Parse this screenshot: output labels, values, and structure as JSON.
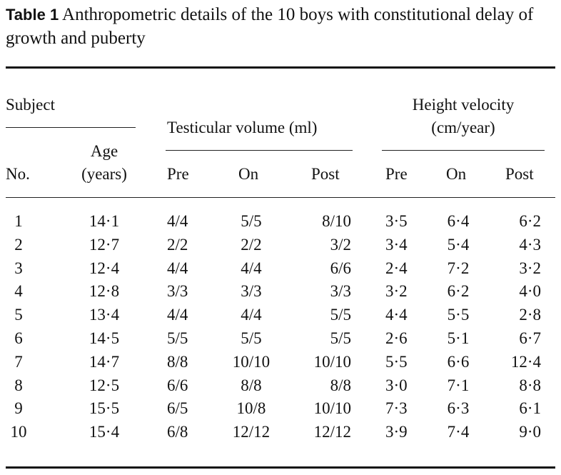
{
  "caption": {
    "label": "Table 1",
    "text": " Anthropometric details of the 10 boys with constitutional delay of growth and puberty"
  },
  "headers": {
    "subject": "Subject",
    "testicular_volume": "Testicular volume (ml)",
    "height_velocity_line1": "Height velocity",
    "height_velocity_line2": "(cm/year)",
    "age_line1": "Age",
    "age_line2": "(years)",
    "no": "No.",
    "tv_pre": "Pre",
    "tv_on": "On",
    "tv_post": "Post",
    "hv_pre": "Pre",
    "hv_on": "On",
    "hv_post": "Post"
  },
  "rows": [
    {
      "no": "1",
      "age": "14·1",
      "tv_pre": "4/4",
      "tv_on": "5/5",
      "tv_post": "8/10",
      "hv_pre": "3·5",
      "hv_on": "6·4",
      "hv_post": "6·2"
    },
    {
      "no": "2",
      "age": "12·7",
      "tv_pre": "2/2",
      "tv_on": "2/2",
      "tv_post": "3/2",
      "hv_pre": "3·4",
      "hv_on": "5·4",
      "hv_post": "4·3"
    },
    {
      "no": "3",
      "age": "12·4",
      "tv_pre": "4/4",
      "tv_on": "4/4",
      "tv_post": "6/6",
      "hv_pre": "2·4",
      "hv_on": "7·2",
      "hv_post": "3·2"
    },
    {
      "no": "4",
      "age": "12·8",
      "tv_pre": "3/3",
      "tv_on": "3/3",
      "tv_post": "3/3",
      "hv_pre": "3·2",
      "hv_on": "6·2",
      "hv_post": "4·0"
    },
    {
      "no": "5",
      "age": "13·4",
      "tv_pre": "4/4",
      "tv_on": "4/4",
      "tv_post": "5/5",
      "hv_pre": "4·4",
      "hv_on": "5·5",
      "hv_post": "2·8"
    },
    {
      "no": "6",
      "age": "14·5",
      "tv_pre": "5/5",
      "tv_on": "5/5",
      "tv_post": "5/5",
      "hv_pre": "2·6",
      "hv_on": "5·1",
      "hv_post": "6·7"
    },
    {
      "no": "7",
      "age": "14·7",
      "tv_pre": "8/8",
      "tv_on": "10/10",
      "tv_post": "10/10",
      "hv_pre": "5·5",
      "hv_on": "6·6",
      "hv_post": "12·4"
    },
    {
      "no": "8",
      "age": "12·5",
      "tv_pre": "6/6",
      "tv_on": "8/8",
      "tv_post": "8/8",
      "hv_pre": "3·0",
      "hv_on": "7·1",
      "hv_post": "8·8"
    },
    {
      "no": "9",
      "age": "15·5",
      "tv_pre": "6/5",
      "tv_on": "10/8",
      "tv_post": "10/10",
      "hv_pre": "7·3",
      "hv_on": "6·3",
      "hv_post": "6·1"
    },
    {
      "no": "10",
      "age": "15·4",
      "tv_pre": "6/8",
      "tv_on": "12/12",
      "tv_post": "12/12",
      "hv_pre": "3·9",
      "hv_on": "7·4",
      "hv_post": "9·0"
    }
  ]
}
